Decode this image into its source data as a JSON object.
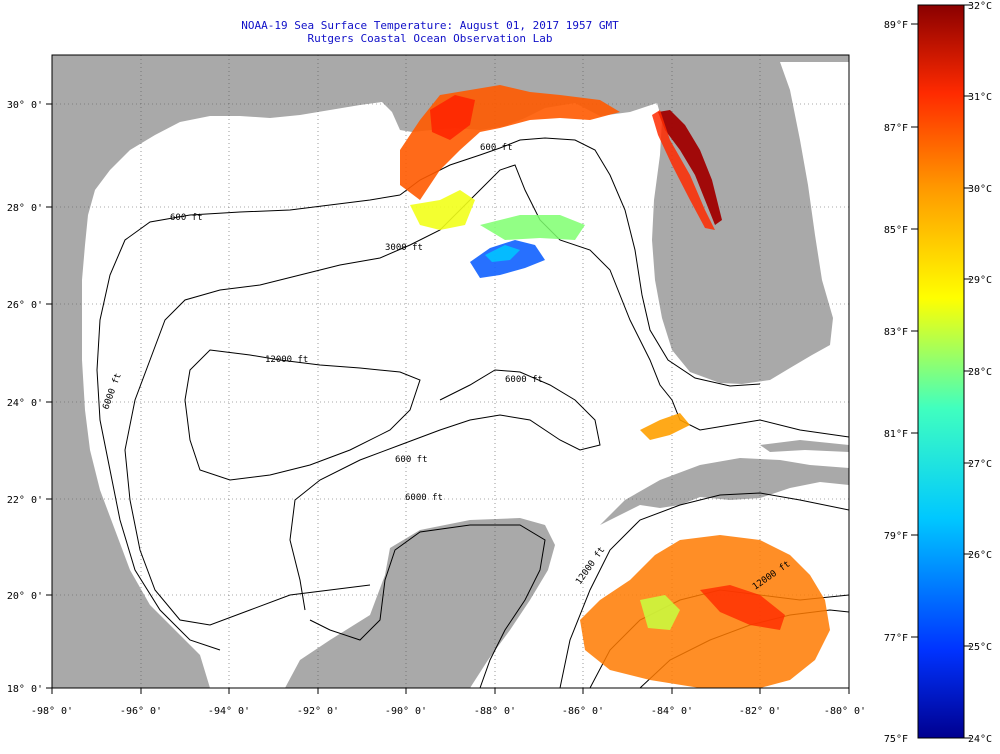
{
  "header": {
    "title_line1": "NOAA-19 Sea Surface Temperature:  August 01, 2017 1957 GMT",
    "title_line2": "Rutgers Coastal Ocean Observation Lab"
  },
  "map": {
    "lon_range": [
      -98,
      -80
    ],
    "lat_range": [
      18,
      31
    ],
    "lon_ticks": [
      "-98° 0'",
      "-96° 0'",
      "-94° 0'",
      "-92° 0'",
      "-90° 0'",
      "-88° 0'",
      "-86° 0'",
      "-84° 0'",
      "-82° 0'",
      "-80° 0'"
    ],
    "lat_ticks": [
      "18° 0'",
      "20° 0'",
      "22° 0'",
      "24° 0'",
      "26° 0'",
      "28° 0'",
      "30° 0'"
    ],
    "contour_labels": [
      "600 ft",
      "600 ft",
      "600 ft",
      "3000 ft",
      "12000 ft",
      "6000 ft",
      "6000 ft",
      "12000 ft",
      "12000 ft",
      "6000 ft"
    ],
    "land_color": "#a9a9a9",
    "water_color": "#ffffff"
  },
  "colorbar": {
    "fahrenheit_labels": [
      "89°F",
      "87°F",
      "85°F",
      "83°F",
      "81°F",
      "79°F",
      "77°F",
      "75°F"
    ],
    "celsius_labels": [
      "32°C",
      "31°C",
      "30°C",
      "29°C",
      "28°C",
      "27°C",
      "26°C",
      "25°C",
      "24°C"
    ],
    "celsius_range": [
      24,
      32
    ]
  }
}
